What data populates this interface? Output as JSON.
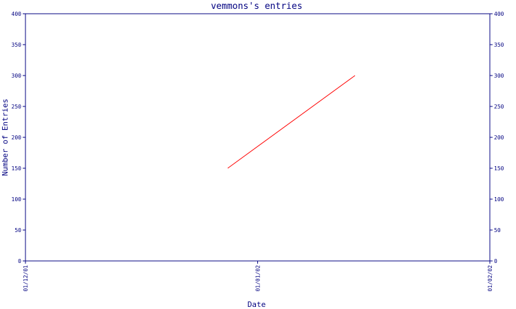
{
  "chart_data": {
    "type": "line",
    "title": "vemmons's entries",
    "xlabel": "Date",
    "ylabel": "Number of Entries",
    "x_ticks": [
      "01/12/01",
      "01/01/02",
      "01/02/02"
    ],
    "y_ticks": [
      0,
      50,
      100,
      150,
      200,
      250,
      300,
      350,
      400
    ],
    "xlim": [
      "2001-12-01",
      "2002-02-01"
    ],
    "ylim": [
      0,
      400
    ],
    "grid": false,
    "series": [
      {
        "color": "#ff0000",
        "points": [
          {
            "x": "2001-12-28",
            "y": 150
          },
          {
            "x": "2002-01-14",
            "y": 300
          }
        ]
      }
    ],
    "colors": {
      "axis": "#000080",
      "text": "#000080",
      "line": "#ff0000"
    }
  }
}
